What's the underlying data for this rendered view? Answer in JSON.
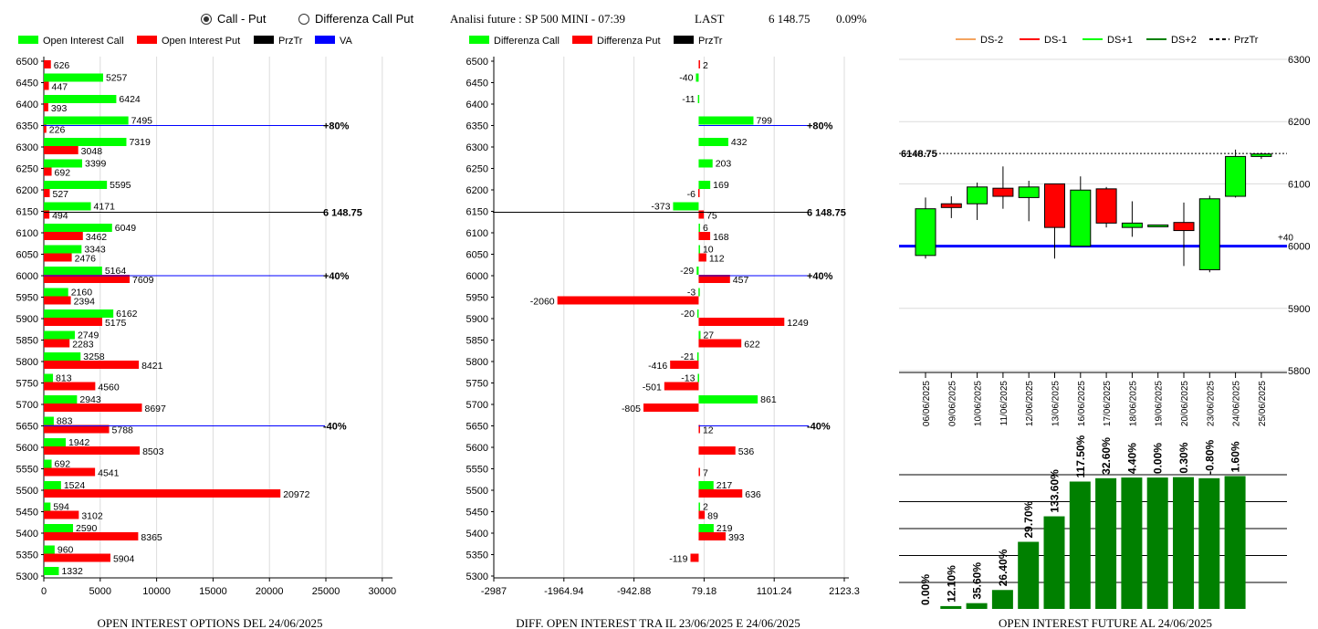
{
  "header": {
    "radio_call_put": "Call - Put",
    "radio_diff": "Differenza Call Put",
    "analisi": "Analisi future : SP 500 MINI - 07:39",
    "last_label": "LAST",
    "last_value": "6 148.75",
    "last_change": "0.09%"
  },
  "legends": {
    "left": [
      {
        "label": "Open Interest Call",
        "color": "#00ff00"
      },
      {
        "label": "Open Interest Put",
        "color": "#ff0000"
      },
      {
        "label": "PrzTr",
        "color": "#000000"
      },
      {
        "label": "VA",
        "color": "#0000ff"
      }
    ],
    "middle": [
      {
        "label": "Differenza Call",
        "color": "#00ff00"
      },
      {
        "label": "Differenza Put",
        "color": "#ff0000"
      },
      {
        "label": "PrzTr",
        "color": "#000000"
      }
    ],
    "right": [
      {
        "label": "DS-2",
        "color": "#f4a460"
      },
      {
        "label": "DS-1",
        "color": "#ff0000"
      },
      {
        "label": "DS+1",
        "color": "#00ff00"
      },
      {
        "label": "DS+2",
        "color": "#008000"
      },
      {
        "label": "PrzTr",
        "color": "#000000"
      }
    ]
  },
  "chart_data": [
    {
      "type": "bar",
      "title": "OPEN INTEREST OPTIONS DEL 24/06/2025",
      "categories": [
        "6500",
        "6450",
        "6400",
        "6350",
        "6300",
        "6250",
        "6200",
        "6150",
        "6100",
        "6050",
        "6000",
        "5950",
        "5900",
        "5850",
        "5800",
        "5750",
        "5700",
        "5650",
        "5600",
        "5550",
        "5500",
        "5450",
        "5400",
        "5350",
        "5300"
      ],
      "series": [
        {
          "name": "Open Interest Call",
          "color": "#00ff00",
          "values": [
            null,
            5257,
            6424,
            7495,
            7319,
            3399,
            5595,
            4171,
            6049,
            3343,
            5164,
            2160,
            6162,
            2749,
            3258,
            813,
            2943,
            883,
            1942,
            692,
            1524,
            594,
            2590,
            960,
            1332
          ]
        },
        {
          "name": "Open Interest Put",
          "color": "#ff0000",
          "values": [
            626,
            447,
            393,
            226,
            3048,
            692,
            527,
            494,
            3462,
            2476,
            7609,
            2394,
            5175,
            2283,
            8421,
            4560,
            8697,
            5788,
            8503,
            4541,
            20972,
            3102,
            8365,
            5904,
            null
          ]
        }
      ],
      "xticks": [
        "0",
        "5000",
        "10000",
        "15000",
        "20000",
        "25000",
        "30000"
      ],
      "xlim": [
        0,
        30500
      ],
      "lines": [
        {
          "price": "6350",
          "label": "+80%",
          "color": "#0000ff"
        },
        {
          "price": "6150",
          "label": "6 148.75",
          "color": "#000000"
        },
        {
          "price": "6000",
          "label": "+40%",
          "color": "#0000ff"
        },
        {
          "price": "5650",
          "label": "-40%",
          "color": "#0000ff"
        }
      ]
    },
    {
      "type": "bar",
      "title": "DIFF. OPEN INTEREST TRA IL 23/06/2025 E 24/06/2025",
      "categories": [
        "6500",
        "6450",
        "6400",
        "6350",
        "6300",
        "6250",
        "6200",
        "6150",
        "6100",
        "6050",
        "6000",
        "5950",
        "5900",
        "5850",
        "5800",
        "5750",
        "5700",
        "5650",
        "5600",
        "5550",
        "5500",
        "5450",
        "5400",
        "5350",
        "5300"
      ],
      "series": [
        {
          "name": "Differenza Call",
          "color": "#00ff00",
          "values": [
            null,
            -40,
            -11,
            799,
            432,
            203,
            169,
            -373,
            6,
            10,
            -29,
            -3,
            -20,
            27,
            -21,
            -13,
            861,
            null,
            null,
            null,
            217,
            2,
            219,
            null,
            null
          ]
        },
        {
          "name": "Differenza Put",
          "color": "#ff0000",
          "values": [
            2,
            null,
            null,
            null,
            null,
            null,
            -6,
            75,
            168,
            112,
            457,
            -2060,
            1249,
            622,
            -416,
            -501,
            -805,
            12,
            536,
            7,
            636,
            89,
            393,
            -119,
            null
          ]
        }
      ],
      "xticks": [
        "-2987",
        "-1964.94",
        "-942.88",
        "79.18",
        "1101.24",
        "2123.3"
      ],
      "xlim": [
        -2987,
        2123.3
      ],
      "lines": [
        {
          "price": "6350",
          "label": "+80%",
          "color": "#0000ff"
        },
        {
          "price": "6150",
          "label": "6 148.75",
          "color": "#000000"
        },
        {
          "price": "6000",
          "label": "+40%",
          "color": "#0000ff"
        },
        {
          "price": "5650",
          "label": "-40%",
          "color": "#0000ff"
        }
      ]
    },
    {
      "type": "candlestick",
      "dates": [
        "06/06/2025",
        "09/06/2025",
        "10/06/2025",
        "11/06/2025",
        "12/06/2025",
        "13/06/2025",
        "16/06/2025",
        "17/06/2025",
        "18/06/2025",
        "19/06/2025",
        "20/06/2025",
        "23/06/2025",
        "24/06/2025",
        "25/06/2025"
      ],
      "candles": [
        {
          "open": 5985,
          "close": 6060,
          "high": 6078,
          "low": 5980,
          "color": "#00ff00"
        },
        {
          "open": 6068,
          "close": 6062,
          "high": 6080,
          "low": 6045,
          "color": "#ff0000"
        },
        {
          "open": 6068,
          "close": 6095,
          "high": 6102,
          "low": 6042,
          "color": "#00ff00"
        },
        {
          "open": 6093,
          "close": 6080,
          "high": 6128,
          "low": 6060,
          "color": "#ff0000"
        },
        {
          "open": 6078,
          "close": 6095,
          "high": 6105,
          "low": 6040,
          "color": "#00ff00"
        },
        {
          "open": 6100,
          "close": 6030,
          "high": 6100,
          "low": 5980,
          "color": "#ff0000"
        },
        {
          "open": 6000,
          "close": 6090,
          "high": 6112,
          "low": 6000,
          "color": "#00ff00"
        },
        {
          "open": 6092,
          "close": 6037,
          "high": 6095,
          "low": 6030,
          "color": "#ff0000"
        },
        {
          "open": 6030,
          "close": 6037,
          "high": 6072,
          "low": 6015,
          "color": "#00ff00"
        },
        {
          "open": 6032,
          "close": 6034,
          "high": 6034,
          "low": 6032,
          "color": "#00ff00"
        },
        {
          "open": 6038,
          "close": 6025,
          "high": 6070,
          "low": 5968,
          "color": "#ff0000"
        },
        {
          "open": 5962,
          "close": 6076,
          "high": 6081,
          "low": 5958,
          "color": "#00ff00"
        },
        {
          "open": 6080,
          "close": 6144,
          "high": 6155,
          "low": 6078,
          "color": "#00ff00"
        },
        {
          "open": 6144,
          "close": 6148,
          "high": 6150,
          "low": 6140,
          "color": "#00ff00"
        }
      ],
      "yticks": [
        "6300",
        "6200",
        "6100",
        "6000",
        "5900",
        "5800"
      ],
      "ylim": [
        5800,
        6300
      ],
      "last_price": 6148.75,
      "last_label": "6148.75",
      "va_level": 6000,
      "va_label": "+40"
    },
    {
      "type": "bar",
      "title": "OPEN INTEREST FUTURE AL 24/06/2025",
      "values": [
        0.0,
        12.1,
        35.6,
        26.4,
        29.7,
        133.6,
        117.5,
        32.6,
        4.4,
        0.0,
        0.3,
        -0.8,
        1.6
      ],
      "labels": [
        "0.00%",
        "12.10%",
        "35.60%",
        "26.40%",
        "29.70%",
        "133.60%",
        "117.50%",
        "32.60%",
        "4.40%",
        "0.00%",
        "0.30%",
        "-0.80%",
        "1.60%"
      ],
      "levels": [
        0,
        2.1,
        4.3,
        14.1,
        50.0,
        69.0,
        94.9,
        97.4,
        97.9,
        97.9,
        98.2,
        97.4,
        99.0
      ],
      "color": "#008000"
    }
  ]
}
